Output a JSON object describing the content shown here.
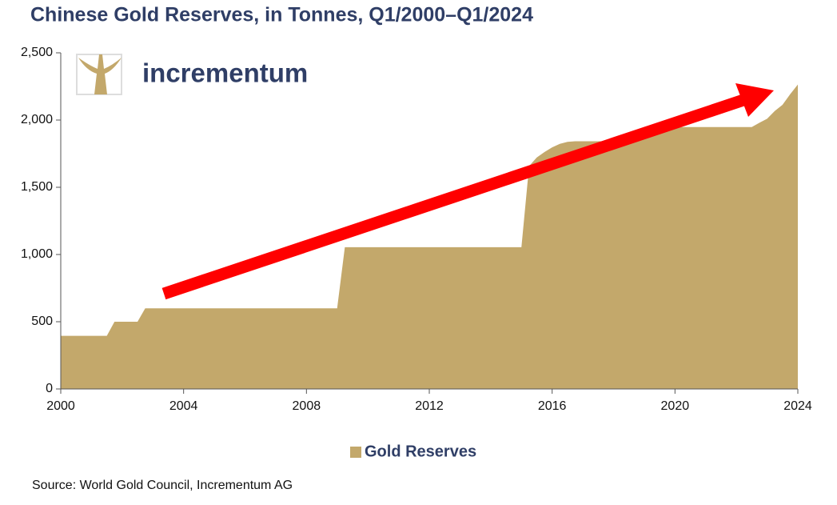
{
  "chart_data": {
    "type": "area",
    "title": "Chinese Gold Reserves, in Tonnes, Q1/2000–Q1/2024",
    "logo_text": "incrementum",
    "source": "Source: World Gold Council, Incrementum AG",
    "x": [
      2000,
      2001.5,
      2001.75,
      2002.5,
      2002.75,
      2009,
      2009.25,
      2015,
      2015.25,
      2015.5,
      2015.75,
      2016,
      2016.25,
      2016.5,
      2016.75,
      2018.75,
      2019,
      2019.25,
      2019.5,
      2019.75,
      2022.5,
      2022.75,
      2023,
      2023.25,
      2023.5,
      2023.75,
      2024
    ],
    "series": [
      {
        "name": "Gold Reserves",
        "color": "#c3a86b",
        "values": [
          395,
          395,
          500,
          500,
          600,
          600,
          1054,
          1054,
          1658,
          1722,
          1762,
          1797,
          1823,
          1838,
          1842,
          1842,
          1885,
          1916,
          1936,
          1948,
          1948,
          1980,
          2010,
          2068,
          2113,
          2192,
          2264
        ]
      }
    ],
    "xlim": [
      2000,
      2024
    ],
    "xticks": [
      2000,
      2004,
      2008,
      2012,
      2016,
      2020,
      2024
    ],
    "ylim": [
      0,
      2500
    ],
    "yticks": [
      0,
      500,
      {
        "value": 1000,
        "label": "1,000"
      },
      {
        "value": 1500,
        "label": "1,500"
      },
      {
        "value": 2000,
        "label": "2,000"
      },
      {
        "value": 2500,
        "label": "2,500"
      }
    ],
    "grid": false,
    "legend": "bottom"
  }
}
